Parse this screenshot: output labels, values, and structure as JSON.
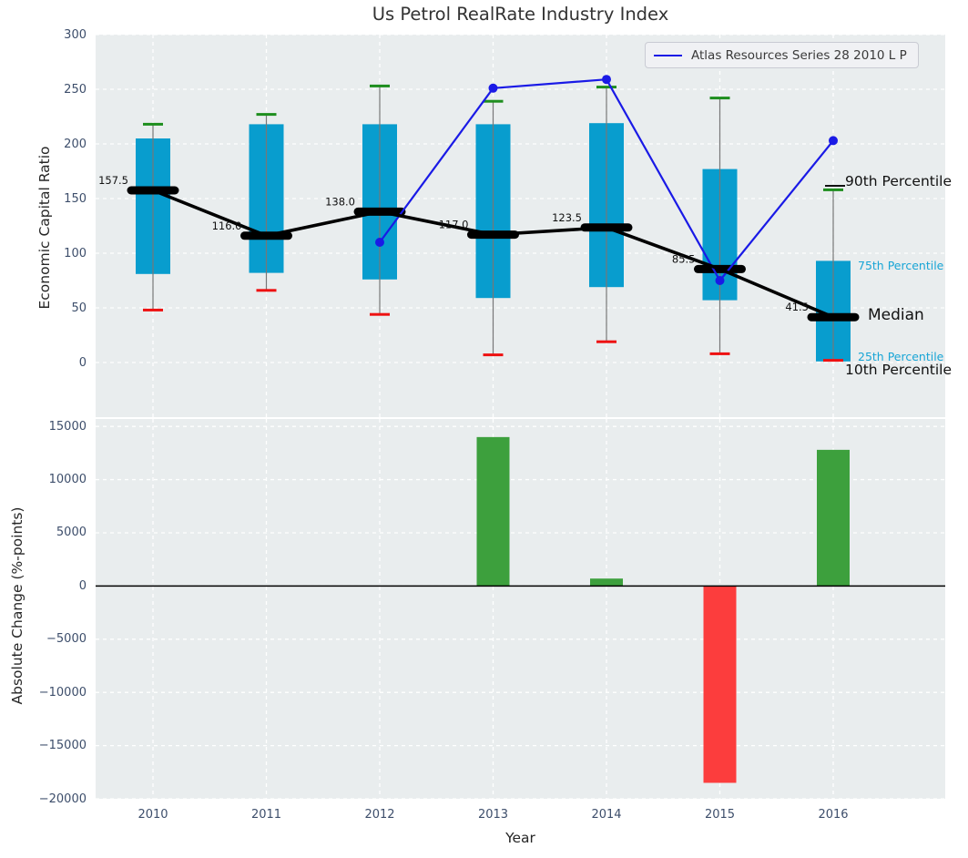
{
  "title": "Us Petrol RealRate Industry Index",
  "colors": {
    "plot_bg": "#e9edee",
    "grid": "#ffffff",
    "tick_text": "#3d4e6b",
    "box_fill": "#089dce",
    "whisker": "#777777",
    "p90_cap": "#1e8e1e",
    "p10_cap": "#ee1111",
    "median": "#000000",
    "atlas_line": "#1a1ae6",
    "bar_positive": "#3da03d",
    "bar_negative": "#fc3d3d",
    "annotation_cyan": "#18a5d6",
    "zero_line": "#000000"
  },
  "legend": {
    "series_label": "Atlas Resources Series 28 2010 L P"
  },
  "chart_data": [
    {
      "type": "box",
      "title": "Us Petrol RealRate Industry Index",
      "ylabel": "Economic Capital Ratio",
      "categories": [
        "2010",
        "2011",
        "2012",
        "2013",
        "2014",
        "2015",
        "2016"
      ],
      "ylim": [
        -50,
        300
      ],
      "yticks": [
        0,
        50,
        100,
        150,
        200,
        250,
        300
      ],
      "grid": "on",
      "legend_position": "upper right",
      "boxes": [
        {
          "year": "2010",
          "p10": 48,
          "q1": 81,
          "median": 157.5,
          "q3": 205,
          "p90": 218
        },
        {
          "year": "2011",
          "p10": 66,
          "q1": 82,
          "median": 116.0,
          "q3": 218,
          "p90": 227
        },
        {
          "year": "2012",
          "p10": 44,
          "q1": 76,
          "median": 138.0,
          "q3": 218,
          "p90": 253
        },
        {
          "year": "2013",
          "p10": 7,
          "q1": 59,
          "median": 117.0,
          "q3": 218,
          "p90": 239
        },
        {
          "year": "2014",
          "p10": 19,
          "q1": 69,
          "median": 123.5,
          "q3": 219,
          "p90": 252
        },
        {
          "year": "2015",
          "p10": 8,
          "q1": 57,
          "median": 85.5,
          "q3": 177,
          "p90": 242
        },
        {
          "year": "2016",
          "p10": 2,
          "q1": 1,
          "median": 41.5,
          "q3": 93,
          "p90": 158
        }
      ],
      "median_labels": [
        "157.5",
        "116.0",
        "138.0",
        "117.0",
        "123.5",
        "85.5",
        "41.5"
      ],
      "line_series": {
        "name": "Atlas Resources Series 28 2010 L P",
        "x": [
          "2012",
          "2013",
          "2014",
          "2015",
          "2016"
        ],
        "values": [
          110,
          251,
          259,
          75,
          203
        ]
      },
      "annotations": [
        "90th Percentile",
        "75th Percentile",
        "Median",
        "25th Percentile",
        "10th Percentile"
      ]
    },
    {
      "type": "bar",
      "ylabel": "Absolute Change (%-points)",
      "xlabel": "Year",
      "categories": [
        "2010",
        "2011",
        "2012",
        "2013",
        "2014",
        "2015",
        "2016"
      ],
      "values": [
        null,
        null,
        null,
        14000,
        700,
        -18500,
        12800
      ],
      "ylim": [
        -20000,
        15700
      ],
      "yticks": [
        -20000,
        -15000,
        -10000,
        -5000,
        0,
        5000,
        10000,
        15000
      ],
      "grid": "on"
    }
  ]
}
